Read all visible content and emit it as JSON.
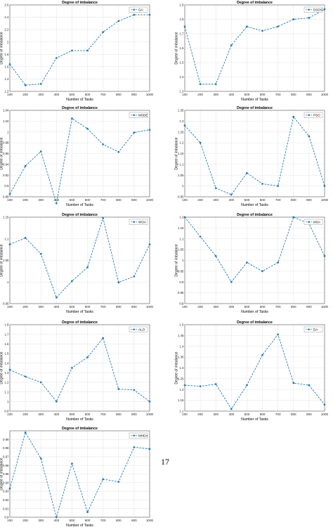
{
  "page": {
    "page_number": "17"
  },
  "chart_data": [
    {
      "type": "line",
      "title": "Degree of imbalance",
      "xlabel": "Number of Tasks",
      "ylabel": "Degree of imbalance",
      "x": [
        100,
        200,
        300,
        400,
        500,
        600,
        700,
        800,
        900,
        1000
      ],
      "xlim": [
        100,
        1000
      ],
      "ylim": [
        1.2,
        2.6
      ],
      "yticks": [
        1.2,
        1.4,
        1.6,
        1.8,
        2,
        2.2,
        2.4,
        2.6
      ],
      "series": [
        {
          "name": "GA",
          "values": [
            1.64,
            1.3,
            1.32,
            1.74,
            1.86,
            1.86,
            2.16,
            2.34,
            2.44,
            2.44
          ]
        }
      ],
      "legend": "top-right",
      "color": "#1f77b4"
    },
    {
      "type": "line",
      "title": "Degree of imbalance",
      "xlabel": "Number of Tasks",
      "ylabel": "Degree of imbalance",
      "x": [
        100,
        200,
        300,
        400,
        500,
        600,
        700,
        800,
        900,
        1000
      ],
      "xlim": [
        100,
        1000
      ],
      "ylim": [
        1.3,
        1.9
      ],
      "yticks": [
        1.3,
        1.4,
        1.5,
        1.6,
        1.7,
        1.8,
        1.9
      ],
      "series": [
        {
          "name": "DSOS",
          "values": [
            1.75,
            1.35,
            1.35,
            1.62,
            1.75,
            1.72,
            1.75,
            1.8,
            1.81,
            1.87
          ]
        }
      ],
      "legend": "top-right",
      "color": "#1f77b4"
    },
    {
      "type": "line",
      "title": "Degree of imbalance",
      "xlabel": "Number of Tasks",
      "ylabel": "Degree of imbalance",
      "x": [
        100,
        200,
        300,
        400,
        500,
        600,
        700,
        800,
        900,
        1000
      ],
      "xlim": [
        100,
        1000
      ],
      "ylim": [
        0.88,
        1.04
      ],
      "yticks": [
        0.88,
        0.9,
        0.92,
        0.94,
        0.96,
        0.98,
        1,
        1.02,
        1.04
      ],
      "series": [
        {
          "name": "MSDE",
          "values": [
            0.885,
            0.937,
            0.964,
            0.868,
            1.025,
            1.006,
            0.977,
            0.963,
            0.999,
            1.004
          ]
        }
      ],
      "legend": "top-right",
      "color": "#1f77b4"
    },
    {
      "type": "line",
      "title": "Degree of imbalance",
      "xlabel": "Number of Tasks",
      "ylabel": "Degree of imbalance",
      "x": [
        100,
        200,
        300,
        400,
        500,
        600,
        700,
        800,
        900,
        1000
      ],
      "xlim": [
        100,
        1000
      ],
      "ylim": [
        0.95,
        1.35
      ],
      "yticks": [
        0.95,
        1,
        1.05,
        1.1,
        1.15,
        1.2,
        1.25,
        1.3,
        1.35
      ],
      "series": [
        {
          "name": "PSO",
          "values": [
            1.28,
            1.2,
            0.99,
            0.96,
            1.06,
            1.01,
            1.0,
            1.32,
            1.23,
            1.0
          ]
        }
      ],
      "legend": "top-right",
      "color": "#1f77b4"
    },
    {
      "type": "line",
      "title": "Degree of imbalance",
      "xlabel": "Number of Tasks",
      "ylabel": "Degree of imbalance",
      "x": [
        100,
        200,
        300,
        400,
        500,
        600,
        700,
        800,
        900,
        1000
      ],
      "xlim": [
        100,
        1000
      ],
      "ylim": [
        0.95,
        1.15
      ],
      "yticks": [
        0.95,
        1,
        1.05,
        1.1,
        1.15
      ],
      "series": [
        {
          "name": "WOA",
          "values": [
            1.087,
            1.102,
            1.065,
            0.964,
            1.002,
            1.034,
            1.148,
            0.999,
            1.013,
            1.087
          ]
        }
      ],
      "legend": "top-right",
      "color": "#1f77b4"
    },
    {
      "type": "line",
      "title": "Degree of imbalance",
      "xlabel": "Number of Tasks",
      "ylabel": "Degree of imbalance",
      "x": [
        100,
        200,
        300,
        400,
        500,
        600,
        700,
        800,
        900,
        1000
      ],
      "xlim": [
        100,
        1000
      ],
      "ylim": [
        0.8,
        1.2
      ],
      "yticks": [
        0.8,
        0.85,
        0.9,
        0.95,
        1,
        1.05,
        1.1,
        1.15,
        1.2
      ],
      "series": [
        {
          "name": "MSA",
          "values": [
            1.2,
            1.11,
            1.02,
            0.9,
            0.99,
            0.95,
            0.99,
            1.2,
            1.17,
            1.02
          ]
        }
      ],
      "legend": "top-right",
      "color": "#1f77b4"
    },
    {
      "type": "line",
      "title": "Degree of imbalance",
      "xlabel": "Number of Tasks",
      "ylabel": "Degree of imbalance",
      "x": [
        100,
        200,
        300,
        400,
        500,
        600,
        700,
        800,
        900,
        1000
      ],
      "xlim": [
        100,
        1000
      ],
      "ylim": [
        0.9,
        1.8
      ],
      "yticks": [
        0.9,
        1,
        1.1,
        1.2,
        1.3,
        1.4,
        1.5,
        1.6,
        1.7,
        1.8
      ],
      "series": [
        {
          "name": "ALO",
          "values": [
            1.33,
            1.26,
            1.2,
            1.0,
            1.35,
            1.46,
            1.66,
            1.13,
            1.12,
            1.0
          ]
        }
      ],
      "legend": "top-right",
      "color": "#1f77b4"
    },
    {
      "type": "line",
      "title": "Degree of imbalance",
      "xlabel": "Number of Tasks",
      "ylabel": "Degree of imbalance",
      "x": [
        100,
        200,
        300,
        400,
        500,
        600,
        700,
        800,
        900,
        1000
      ],
      "xlim": [
        100,
        1000
      ],
      "ylim": [
        1.1,
        1.5
      ],
      "yticks": [
        1.1,
        1.15,
        1.2,
        1.25,
        1.3,
        1.35,
        1.4,
        1.45,
        1.5
      ],
      "series": [
        {
          "name": "DA",
          "values": [
            1.22,
            1.215,
            1.225,
            1.11,
            1.22,
            1.36,
            1.455,
            1.23,
            1.22,
            1.13
          ]
        }
      ],
      "legend": "top-right",
      "color": "#1f77b4"
    },
    {
      "type": "line",
      "title": "Degree of imbalance",
      "xlabel": "Number of Tasks",
      "ylabel": "Degree of imbalance",
      "x": [
        100,
        200,
        300,
        400,
        500,
        600,
        700,
        800,
        900,
        1000
      ],
      "xlim": [
        100,
        1000
      ],
      "ylim": [
        0.9,
        1
      ],
      "yticks": [
        0.9,
        0.91,
        0.92,
        0.93,
        0.94,
        0.95,
        0.96,
        0.97,
        0.98,
        0.99
      ],
      "series": [
        {
          "name": "MHDA",
          "values": [
            0.933,
            0.998,
            0.968,
            0.9,
            0.962,
            0.906,
            0.944,
            0.941,
            0.981,
            0.979
          ]
        }
      ],
      "legend": "top-right",
      "color": "#1f77b4"
    }
  ]
}
